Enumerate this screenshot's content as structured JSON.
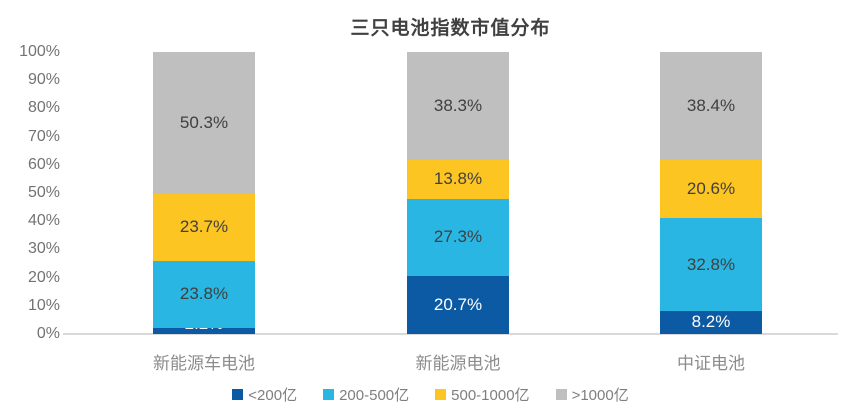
{
  "chart_data": {
    "type": "bar",
    "stacked": true,
    "title": "三只电池指数市值分布",
    "categories": [
      "新能源车电池",
      "新能源电池",
      "中证电池"
    ],
    "series": [
      {
        "name": "<200亿",
        "color": "#0b5aa3",
        "label_color": "#ffffff",
        "values": [
          2.2,
          20.7,
          8.2
        ]
      },
      {
        "name": "200-500亿",
        "color": "#29b6e2",
        "label_color": "#404040",
        "values": [
          23.8,
          27.3,
          32.8
        ]
      },
      {
        "name": "500-1000亿",
        "color": "#fdc521",
        "label_color": "#404040",
        "values": [
          23.7,
          13.8,
          20.6
        ]
      },
      {
        "name": ">1000亿",
        "color": "#bfbfbf",
        "label_color": "#404040",
        "values": [
          50.3,
          38.3,
          38.4
        ]
      }
    ],
    "value_suffix": "%",
    "yticks": [
      "0%",
      "10%",
      "20%",
      "30%",
      "40%",
      "50%",
      "60%",
      "70%",
      "80%",
      "90%",
      "100%"
    ],
    "ylim": [
      0,
      100
    ],
    "grid": false,
    "legend_position": "bottom"
  },
  "colors": {
    "background": "#ffffff",
    "axis_line": "#d9d9d9",
    "title_text": "#404040",
    "tick_text": "#737373",
    "category_text": "#8c8c8c",
    "legend_text": "#7f7f7f"
  }
}
